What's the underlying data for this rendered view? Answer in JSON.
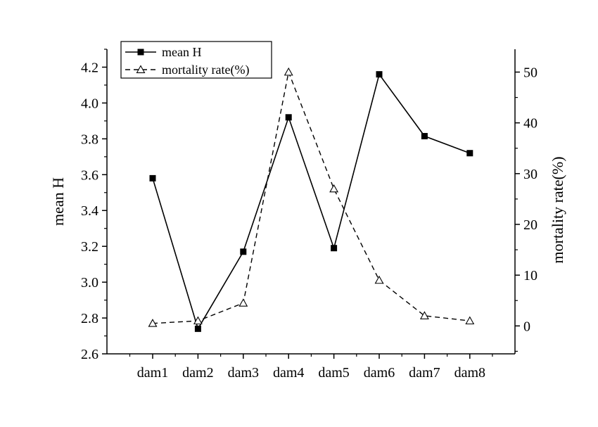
{
  "chart_data": {
    "type": "line",
    "categories": [
      "dam1",
      "dam2",
      "dam3",
      "dam4",
      "dam5",
      "dam6",
      "dam7",
      "dam8"
    ],
    "series": [
      {
        "name": "mean H",
        "axis": "left",
        "marker": "filled-square",
        "line_style": "solid",
        "values": [
          3.58,
          2.74,
          3.17,
          3.92,
          3.19,
          4.16,
          3.815,
          3.72
        ]
      },
      {
        "name": "mortality rate(%)",
        "axis": "right",
        "marker": "open-triangle",
        "line_style": "dashed",
        "values": [
          0.5,
          1.0,
          4.5,
          50.0,
          27.0,
          9.0,
          2.0,
          1.0
        ]
      }
    ],
    "ylabel_left": "mean H",
    "ylabel_right": "mortality rate(%)",
    "xlabel": "",
    "ylim_left": [
      2.6,
      4.3
    ],
    "ylim_right": [
      -5.5,
      54.5
    ],
    "yticks_left": [
      "2.6",
      "2.8",
      "3.0",
      "3.2",
      "3.4",
      "3.6",
      "3.8",
      "4.0",
      "4.2"
    ],
    "yticks_right": [
      "0",
      "10",
      "20",
      "30",
      "40",
      "50"
    ],
    "legend": {
      "position": "top-left",
      "entries": [
        "mean H",
        "mortality rate(%)"
      ]
    },
    "grid": false,
    "colors": {
      "line": "#000000",
      "background": "#ffffff"
    }
  }
}
